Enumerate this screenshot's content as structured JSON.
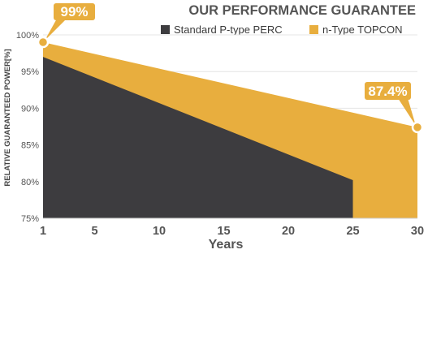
{
  "chart_data": {
    "type": "area",
    "title": "OUR PERFORMANCE GUARANTEE",
    "xlabel": "Years",
    "ylabel": "RELATIVE GUARANTEED POWER[%]",
    "xlim": [
      1,
      30
    ],
    "ylim": [
      75,
      100
    ],
    "x_ticks": [
      1,
      5,
      10,
      15,
      20,
      25,
      30
    ],
    "y_ticks": [
      {
        "value": 75,
        "label": "75%"
      },
      {
        "value": 80,
        "label": "80%"
      },
      {
        "value": 85,
        "label": "85%"
      },
      {
        "value": 90,
        "label": "90%"
      },
      {
        "value": 95,
        "label": "95%"
      },
      {
        "value": 100,
        "label": "100%"
      }
    ],
    "legend_position": "top-right",
    "series": [
      {
        "name": "n-Type TOPCON",
        "color": "#E8AE3E",
        "x": [
          1,
          30
        ],
        "y": [
          99,
          87.4
        ]
      },
      {
        "name": "Standard P-type PERC",
        "color": "#3D3C3F",
        "x": [
          1,
          25
        ],
        "y": [
          97,
          80.2
        ]
      }
    ],
    "annotations": [
      {
        "text": "99%",
        "x": 1,
        "y": 99
      },
      {
        "text": "87.4%",
        "x": 30,
        "y": 87.4
      }
    ]
  }
}
